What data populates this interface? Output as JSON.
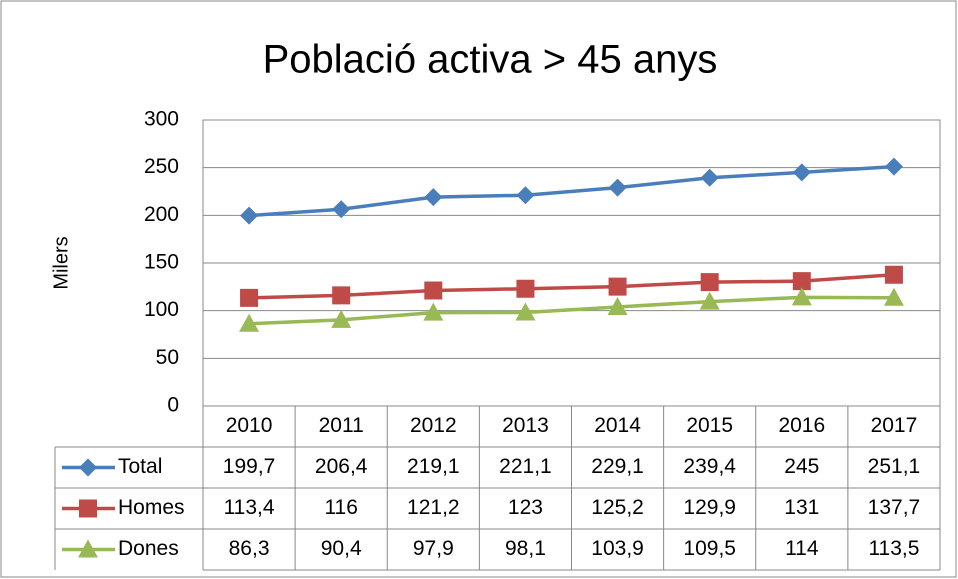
{
  "chart_data": {
    "type": "line",
    "title": "Població activa > 45 anys",
    "y_label": "Milers",
    "categories": [
      "2010",
      "2011",
      "2012",
      "2013",
      "2014",
      "2015",
      "2016",
      "2017"
    ],
    "series": [
      {
        "name": "Total",
        "color": "#4a7ebb",
        "marker": "diamond",
        "values": [
          199.7,
          206.4,
          219.1,
          221.1,
          229.1,
          239.4,
          245,
          251.1
        ],
        "value_labels": [
          "199,7",
          "206,4",
          "219,1",
          "221,1",
          "229,1",
          "239,4",
          "245",
          "251,1"
        ]
      },
      {
        "name": "Homes",
        "color": "#be4b48",
        "marker": "square",
        "values": [
          113.4,
          116,
          121.2,
          123,
          125.2,
          129.9,
          131,
          137.7
        ],
        "value_labels": [
          "113,4",
          "116",
          "121,2",
          "123",
          "125,2",
          "129,9",
          "131",
          "137,7"
        ]
      },
      {
        "name": "Dones",
        "color": "#98b954",
        "marker": "triangle",
        "values": [
          86.3,
          90.4,
          97.9,
          98.1,
          103.9,
          109.5,
          114,
          113.5
        ],
        "value_labels": [
          "86,3",
          "90,4",
          "97,9",
          "98,1",
          "103,9",
          "109,5",
          "114",
          "113,5"
        ]
      }
    ],
    "ylim": [
      0,
      300
    ],
    "yticks": [
      0,
      50,
      100,
      150,
      200,
      250,
      300
    ],
    "grid": true
  }
}
